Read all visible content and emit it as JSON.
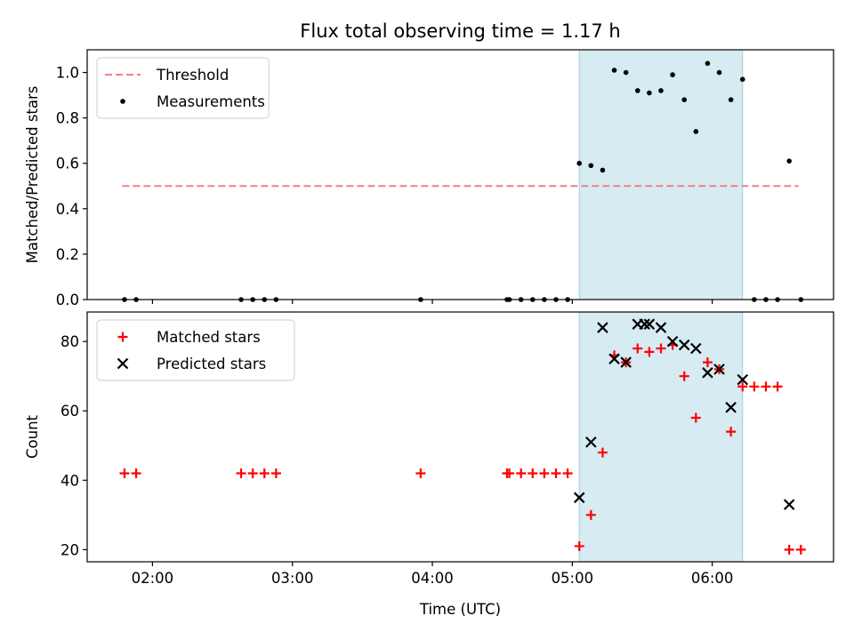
{
  "chart_data": [
    {
      "type": "scatter",
      "title": "Flux total observing time = 1.17 h",
      "xlabel": "",
      "ylabel": "Matched/Predicted stars",
      "ylim": [
        0,
        1.1
      ],
      "yticks": [
        "0.0",
        "0.2",
        "0.4",
        "0.6",
        "0.8",
        "1.0"
      ],
      "xlim": [
        "01:32",
        "06:52"
      ],
      "highlight_span": [
        "05:03",
        "06:13"
      ],
      "grid": false,
      "legend_position": "top-left",
      "threshold": {
        "name": "Threshold",
        "value": 0.5,
        "x_start": "01:47",
        "x_end": "06:37",
        "color": "#f08080"
      },
      "series": [
        {
          "name": "Measurements",
          "color": "#000000",
          "marker": "dot",
          "x": [
            "01:48",
            "01:53",
            "02:38",
            "02:43",
            "02:48",
            "02:53",
            "03:55",
            "04:32",
            "04:33",
            "04:38",
            "04:43",
            "04:48",
            "04:53",
            "04:58",
            "05:03",
            "05:08",
            "05:13",
            "05:18",
            "05:23",
            "05:28",
            "05:33",
            "05:38",
            "05:43",
            "05:48",
            "05:53",
            "05:58",
            "06:03",
            "06:08",
            "06:13",
            "06:18",
            "06:23",
            "06:28",
            "06:33",
            "06:38"
          ],
          "y": [
            0,
            0,
            0,
            0,
            0,
            0,
            0,
            0,
            0,
            0,
            0,
            0,
            0,
            0,
            0.6,
            0.59,
            0.57,
            1.01,
            1.0,
            0.92,
            0.91,
            0.92,
            0.99,
            0.88,
            0.74,
            1.04,
            1.0,
            0.88,
            0.97,
            0,
            0,
            0,
            0.61,
            0
          ]
        }
      ]
    },
    {
      "type": "scatter",
      "title": "",
      "xlabel": "Time (UTC)",
      "ylabel": "Count",
      "ylim": [
        16.5,
        88.5
      ],
      "yticks": [
        "20",
        "40",
        "60",
        "80"
      ],
      "xlim": [
        "01:32",
        "06:52"
      ],
      "xticks": [
        "02:00",
        "03:00",
        "04:00",
        "05:00",
        "06:00"
      ],
      "highlight_span": [
        "05:03",
        "06:13"
      ],
      "grid": false,
      "legend_position": "top-left",
      "series": [
        {
          "name": "Matched stars",
          "color": "#ff0000",
          "marker": "plus",
          "x": [
            "01:48",
            "01:53",
            "02:38",
            "02:43",
            "02:48",
            "02:53",
            "03:55",
            "04:32",
            "04:33",
            "04:38",
            "04:43",
            "04:48",
            "04:53",
            "04:58",
            "05:03",
            "05:08",
            "05:13",
            "05:18",
            "05:23",
            "05:28",
            "05:33",
            "05:38",
            "05:43",
            "05:48",
            "05:53",
            "05:58",
            "06:03",
            "06:08",
            "06:13",
            "06:18",
            "06:23",
            "06:28",
            "06:33",
            "06:38"
          ],
          "y": [
            42,
            42,
            42,
            42,
            42,
            42,
            42,
            42,
            42,
            42,
            42,
            42,
            42,
            42,
            21,
            30,
            48,
            76,
            74,
            78,
            77,
            78,
            79,
            70,
            58,
            74,
            72,
            54,
            67,
            67,
            67,
            67,
            20,
            20
          ]
        },
        {
          "name": "Predicted stars",
          "color": "#000000",
          "marker": "x",
          "x": [
            "05:03",
            "05:08",
            "05:13",
            "05:18",
            "05:23",
            "05:28",
            "05:31",
            "05:33",
            "05:38",
            "05:43",
            "05:48",
            "05:53",
            "05:58",
            "06:03",
            "06:08",
            "06:13",
            "06:33"
          ],
          "y": [
            35,
            51,
            84,
            75,
            74,
            85,
            85,
            85,
            84,
            80,
            79,
            78,
            71,
            72,
            61,
            69,
            33
          ]
        }
      ]
    }
  ]
}
